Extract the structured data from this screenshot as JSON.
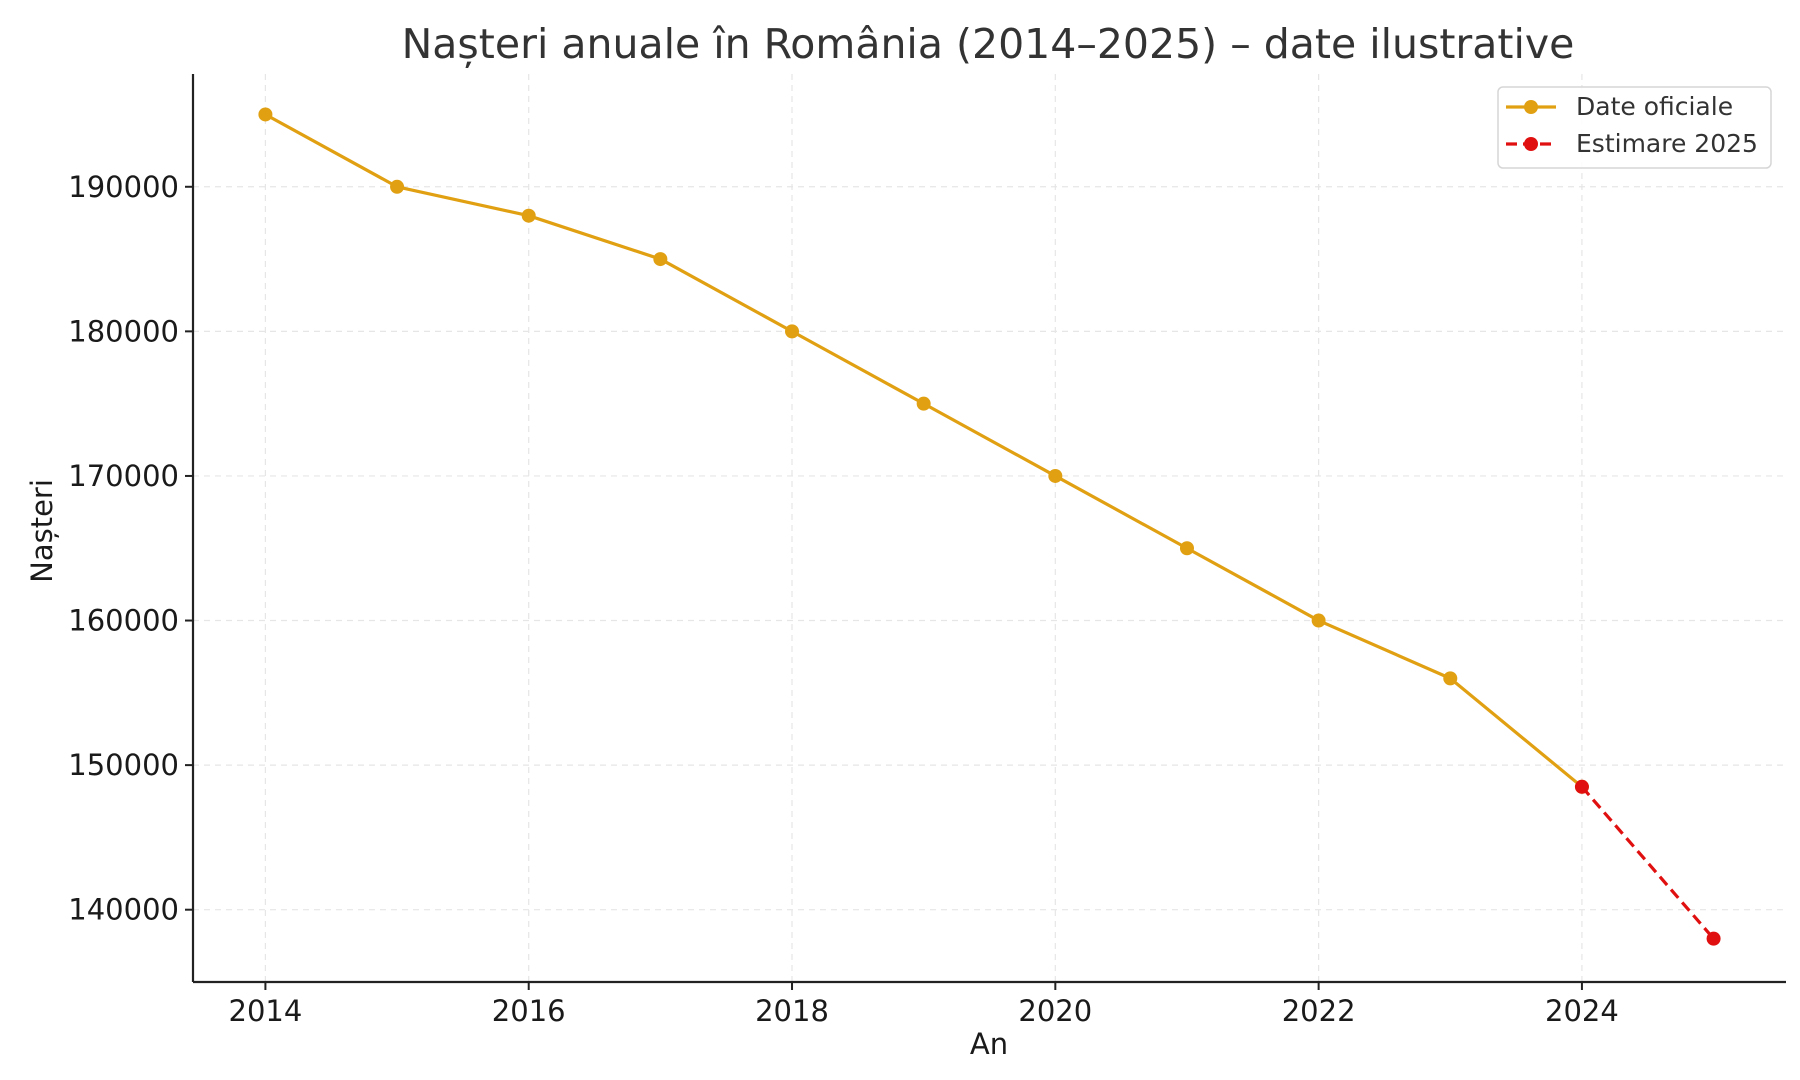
{
  "chart_data": {
    "type": "line",
    "title": "Nașteri anuale în România (2014–2025) – date ilustrative",
    "xlabel": "An",
    "ylabel": "Nașteri",
    "xlim": [
      2013.45,
      2025.55
    ],
    "ylim": [
      135000,
      197800
    ],
    "x_ticks": [
      2014,
      2016,
      2018,
      2020,
      2022,
      2024
    ],
    "y_ticks": [
      140000,
      150000,
      160000,
      170000,
      180000,
      190000
    ],
    "grid": true,
    "legend_position": "top-right",
    "series": [
      {
        "name": "Date oficiale",
        "color": "#E0A012",
        "line_style": "solid",
        "marker": "circle",
        "x": [
          2014,
          2015,
          2016,
          2017,
          2018,
          2019,
          2020,
          2021,
          2022,
          2023,
          2024
        ],
        "y": [
          195000,
          190000,
          188000,
          185000,
          180000,
          175000,
          170000,
          165000,
          160000,
          156000,
          148500
        ]
      },
      {
        "name": "Estimare 2025",
        "color": "#E01010",
        "line_style": "dashed",
        "marker": "circle",
        "x": [
          2024,
          2025
        ],
        "y": [
          148500,
          138000
        ]
      }
    ]
  }
}
